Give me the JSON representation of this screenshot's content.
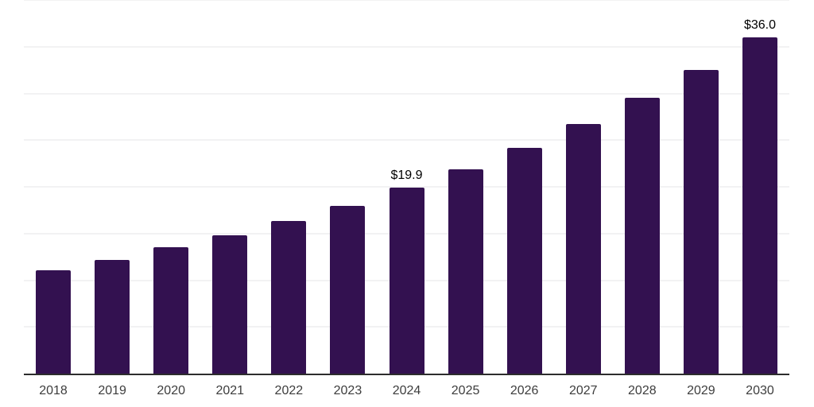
{
  "chart_data": {
    "type": "bar",
    "title": "",
    "xlabel": "",
    "ylabel": "",
    "categories": [
      "2018",
      "2019",
      "2020",
      "2021",
      "2022",
      "2023",
      "2024",
      "2025",
      "2026",
      "2027",
      "2028",
      "2029",
      "2030"
    ],
    "values": [
      11.1,
      12.2,
      13.5,
      14.8,
      16.3,
      18.0,
      19.9,
      21.9,
      24.2,
      26.7,
      29.5,
      32.5,
      36.0
    ],
    "data_labels": [
      "",
      "",
      "",
      "",
      "",
      "",
      "$19.9",
      "",
      "",
      "",
      "",
      "",
      "$36.0"
    ],
    "ylim": [
      0,
      40
    ],
    "gridline_step": 5,
    "grid": true,
    "legend": false,
    "colors": {
      "bar": "#331150",
      "axis_line": "#2d2d2d",
      "gridline": "#f2f2f3",
      "tick_label": "#3d3d3d",
      "data_label": "#000000",
      "background": "#ffffff"
    }
  }
}
